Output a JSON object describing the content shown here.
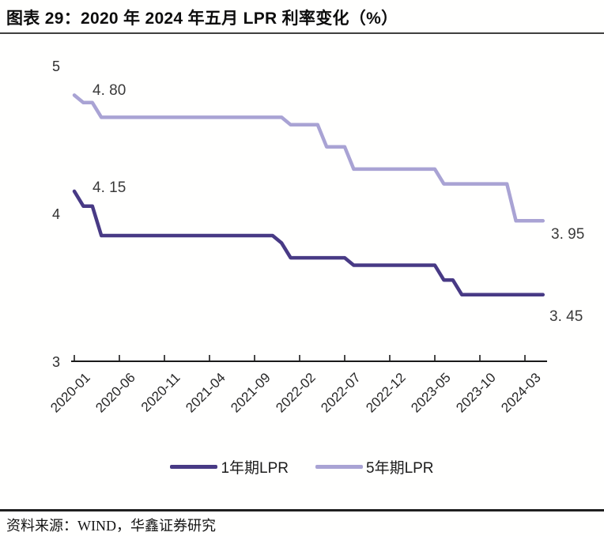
{
  "title": "图表 29：2020 年 2024 年五月 LPR 利率变化（%）",
  "source": "资料来源：WIND，华鑫证券研究",
  "legend": {
    "position": "bottom",
    "items": [
      {
        "label": "1年期LPR",
        "color": "#483a85"
      },
      {
        "label": "5年期LPR",
        "color": "#a9a3d4"
      }
    ]
  },
  "colors": {
    "series_1y": "#483a85",
    "series_5y": "#a9a3d4",
    "axis": "#1a1a1a",
    "tick_text": "#2e2e2e"
  },
  "chart_data": {
    "type": "line",
    "title": "2020 年 2024 年五月 LPR 利率变化（%）",
    "xlabel": "",
    "ylabel": "",
    "grid": false,
    "legend_position": "bottom",
    "ylim": [
      3,
      5
    ],
    "y_ticks": [
      5,
      4,
      3
    ],
    "x_ticks": [
      "2020-01",
      "2020-06",
      "2020-11",
      "2021-04",
      "2021-09",
      "2022-02",
      "2022-07",
      "2022-12",
      "2023-05",
      "2023-10",
      "2024-03"
    ],
    "x": [
      "2020-01",
      "2020-02",
      "2020-03",
      "2020-04",
      "2020-05",
      "2020-06",
      "2020-07",
      "2020-08",
      "2020-09",
      "2020-10",
      "2020-11",
      "2020-12",
      "2021-01",
      "2021-02",
      "2021-03",
      "2021-04",
      "2021-05",
      "2021-06",
      "2021-07",
      "2021-08",
      "2021-09",
      "2021-10",
      "2021-11",
      "2021-12",
      "2022-01",
      "2022-02",
      "2022-03",
      "2022-04",
      "2022-05",
      "2022-06",
      "2022-07",
      "2022-08",
      "2022-09",
      "2022-10",
      "2022-11",
      "2022-12",
      "2023-01",
      "2023-02",
      "2023-03",
      "2023-04",
      "2023-05",
      "2023-06",
      "2023-07",
      "2023-08",
      "2023-09",
      "2023-10",
      "2023-11",
      "2023-12",
      "2024-01",
      "2024-02",
      "2024-03",
      "2024-04",
      "2024-05"
    ],
    "series": [
      {
        "name": "1年期LPR",
        "color": "#483a85",
        "values": [
          4.15,
          4.05,
          4.05,
          3.85,
          3.85,
          3.85,
          3.85,
          3.85,
          3.85,
          3.85,
          3.85,
          3.85,
          3.85,
          3.85,
          3.85,
          3.85,
          3.85,
          3.85,
          3.85,
          3.85,
          3.85,
          3.85,
          3.85,
          3.8,
          3.7,
          3.7,
          3.7,
          3.7,
          3.7,
          3.7,
          3.7,
          3.65,
          3.65,
          3.65,
          3.65,
          3.65,
          3.65,
          3.65,
          3.65,
          3.65,
          3.65,
          3.55,
          3.55,
          3.45,
          3.45,
          3.45,
          3.45,
          3.45,
          3.45,
          3.45,
          3.45,
          3.45,
          3.45
        ]
      },
      {
        "name": "5年期LPR",
        "color": "#a9a3d4",
        "values": [
          4.8,
          4.75,
          4.75,
          4.65,
          4.65,
          4.65,
          4.65,
          4.65,
          4.65,
          4.65,
          4.65,
          4.65,
          4.65,
          4.65,
          4.65,
          4.65,
          4.65,
          4.65,
          4.65,
          4.65,
          4.65,
          4.65,
          4.65,
          4.65,
          4.6,
          4.6,
          4.6,
          4.6,
          4.45,
          4.45,
          4.45,
          4.3,
          4.3,
          4.3,
          4.3,
          4.3,
          4.3,
          4.3,
          4.3,
          4.3,
          4.3,
          4.2,
          4.2,
          4.2,
          4.2,
          4.2,
          4.2,
          4.2,
          4.2,
          3.95,
          3.95,
          3.95,
          3.95
        ]
      }
    ],
    "annotations": [
      {
        "text": "4. 80",
        "series": "5年期LPR",
        "x": "2020-01",
        "y": 4.8
      },
      {
        "text": "4. 15",
        "series": "1年期LPR",
        "x": "2020-01",
        "y": 4.15
      },
      {
        "text": "3. 95",
        "series": "5年期LPR",
        "x": "2024-05",
        "y": 3.95
      },
      {
        "text": "3. 45",
        "series": "1年期LPR",
        "x": "2024-05",
        "y": 3.45
      }
    ]
  }
}
